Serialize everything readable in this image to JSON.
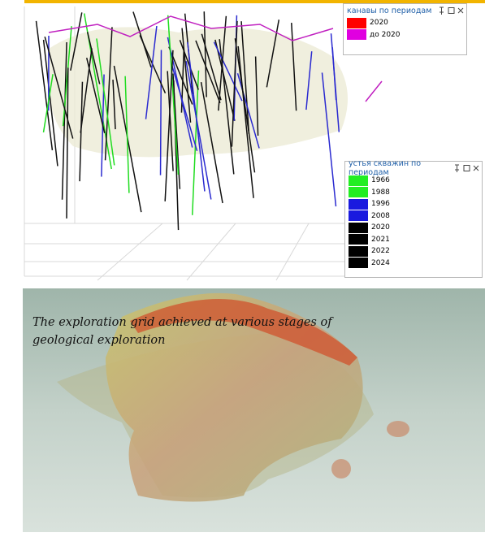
{
  "legends": [
    {
      "title": "канавы по периодам",
      "items": [
        {
          "label": "2020",
          "color": "#ff0000"
        },
        {
          "label": "до 2020",
          "color": "#e000e0"
        }
      ]
    },
    {
      "title": "устья скважин по периодам",
      "items": [
        {
          "label": "1966",
          "color": "#22ee22"
        },
        {
          "label": "1988",
          "color": "#22ee22"
        },
        {
          "label": "1996",
          "color": "#1a1adf"
        },
        {
          "label": "2008",
          "color": "#1a1adf"
        },
        {
          "label": "2020",
          "color": "#000000"
        },
        {
          "label": "2021",
          "color": "#000000"
        },
        {
          "label": "2022",
          "color": "#000000"
        },
        {
          "label": "2024",
          "color": "#000000"
        }
      ]
    }
  ],
  "caption": "The exploration grid achieved at various stages of geological exploration"
}
